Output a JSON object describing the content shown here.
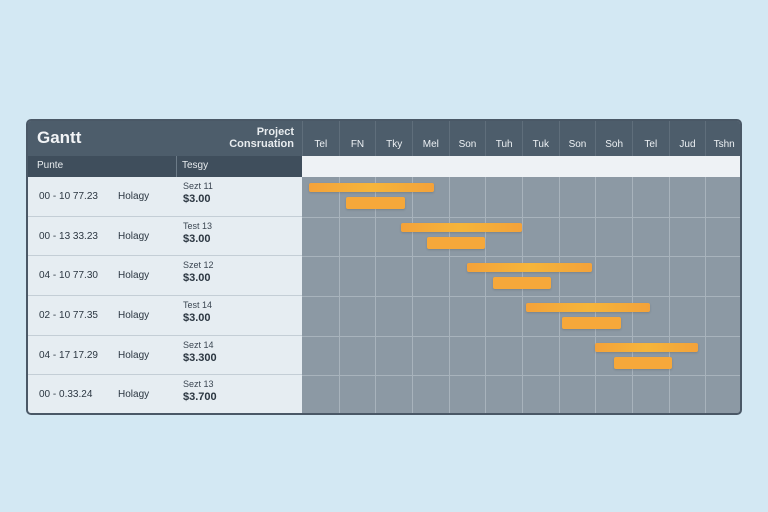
{
  "app": {
    "title": "Gantt",
    "project_title": "Project\nConsruation"
  },
  "days": [
    "Tel",
    "FN",
    "Tky",
    "Mel",
    "Son",
    "Tuh",
    "Tuk",
    "Son",
    "Soh",
    "Tel",
    "Jud",
    "Tshn"
  ],
  "columns": {
    "name": "Punte",
    "task": "Tesgy"
  },
  "rows": [
    {
      "date": "00 - 10 77.23",
      "resource": "Holagy",
      "task": "Sezt 11",
      "cost": "$3.00"
    },
    {
      "date": "00 - 13 33.23",
      "resource": "Holagy",
      "task": "Test 13",
      "cost": "$3.00"
    },
    {
      "date": "04 - 10 77.30",
      "resource": "Holagy",
      "task": "Szet 12",
      "cost": "$3.00"
    },
    {
      "date": "02 - 10 77.35",
      "resource": "Holagy",
      "task": "Test 14",
      "cost": "$3.00"
    },
    {
      "date": "04 - 17 17.29",
      "resource": "Holagy",
      "task": "Sezt 14",
      "cost": "$3.300"
    },
    {
      "date": "00 - 0.33.24",
      "resource": "Holagy",
      "task": "Sezt 13",
      "cost": "$3.700"
    }
  ],
  "colors": {
    "bar_primary": "#f5b53a",
    "bar_secondary": "#f6a83a",
    "header": "#4d5d6b",
    "background": "#d3e8f3"
  },
  "bars": [
    {
      "start": 0.2,
      "end": 3.6,
      "kind": "primary"
    },
    {
      "start": 1.2,
      "end": 2.8,
      "kind": "secondary"
    },
    {
      "start": 2.7,
      "end": 6.0,
      "kind": "primary"
    },
    {
      "start": 3.4,
      "end": 5.0,
      "kind": "secondary"
    },
    {
      "start": 4.5,
      "end": 7.9,
      "kind": "primary"
    },
    {
      "start": 5.2,
      "end": 6.8,
      "kind": "secondary"
    },
    {
      "start": 6.1,
      "end": 9.5,
      "kind": "primary"
    },
    {
      "start": 7.1,
      "end": 8.7,
      "kind": "secondary"
    },
    {
      "start": 8.0,
      "end": 10.8,
      "kind": "primary"
    },
    {
      "start": 8.5,
      "end": 10.1,
      "kind": "secondary"
    }
  ]
}
